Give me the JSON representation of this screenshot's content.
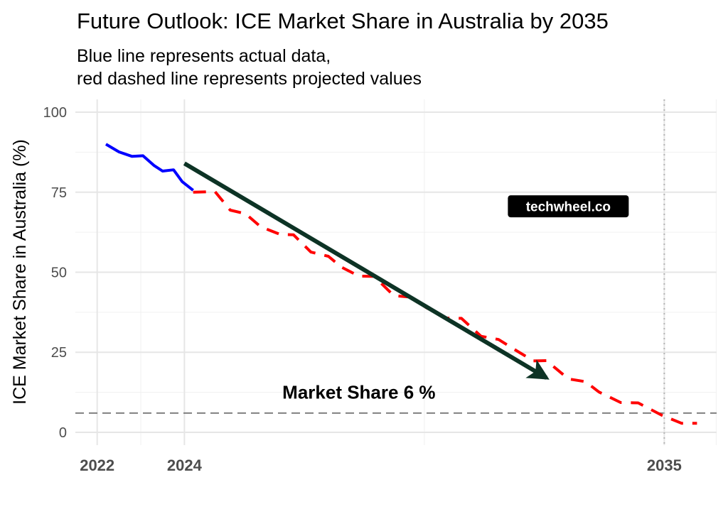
{
  "chart_data": {
    "type": "line",
    "title": "Future Outlook: ICE Market Share in Australia by 2035",
    "subtitle_lines": [
      "Blue line represents actual data,",
      "red dashed line represents projected values"
    ],
    "xlabel": "",
    "ylabel": "ICE Market Share in Australia (%)",
    "xlim": [
      2021.5,
      2036.2
    ],
    "ylim": [
      -4,
      104
    ],
    "x_ticks": [
      2022,
      2024,
      2035
    ],
    "y_ticks": [
      0,
      25,
      50,
      75,
      100
    ],
    "grid": true,
    "series": [
      {
        "name": "actual",
        "style": "solid",
        "color": "#0000ff",
        "points": [
          [
            2022.2,
            90.0
          ],
          [
            2022.5,
            87.6
          ],
          [
            2022.8,
            86.2
          ],
          [
            2023.05,
            86.4
          ],
          [
            2023.3,
            83.4
          ],
          [
            2023.5,
            81.6
          ],
          [
            2023.75,
            82.0
          ],
          [
            2023.95,
            78.3
          ],
          [
            2024.2,
            75.6
          ]
        ]
      },
      {
        "name": "projected",
        "style": "dashed",
        "color": "#ff0000",
        "points": [
          [
            2024.2,
            75.0
          ],
          [
            2024.7,
            75.2
          ],
          [
            2025.05,
            69.4
          ],
          [
            2025.4,
            68.3
          ],
          [
            2025.75,
            64.2
          ],
          [
            2026.2,
            61.8
          ],
          [
            2026.5,
            61.7
          ],
          [
            2026.9,
            56.3
          ],
          [
            2027.3,
            55.0
          ],
          [
            2027.6,
            51.6
          ],
          [
            2028.0,
            48.8
          ],
          [
            2028.35,
            48.7
          ],
          [
            2028.8,
            42.7
          ],
          [
            2029.2,
            42.2
          ],
          [
            2029.55,
            38.9
          ],
          [
            2030.0,
            35.7
          ],
          [
            2030.35,
            35.6
          ],
          [
            2030.8,
            30.0
          ],
          [
            2031.2,
            29.0
          ],
          [
            2031.6,
            25.6
          ],
          [
            2032.0,
            22.3
          ],
          [
            2032.3,
            22.4
          ],
          [
            2032.8,
            16.7
          ],
          [
            2033.2,
            15.8
          ],
          [
            2033.5,
            12.6
          ],
          [
            2034.0,
            9.3
          ],
          [
            2034.4,
            9.2
          ],
          [
            2034.95,
            5.3
          ],
          [
            2035.4,
            2.8
          ],
          [
            2035.75,
            2.8
          ]
        ]
      }
    ],
    "reference_lines": [
      {
        "orientation": "horizontal",
        "value": 6,
        "style": "dashed",
        "color": "#808080"
      },
      {
        "orientation": "vertical",
        "value": 2035,
        "style": "dotted",
        "color": "#b3b3b3"
      }
    ],
    "trend_arrow": {
      "from": [
        2024.0,
        84.0
      ],
      "to": [
        2032.3,
        17.0
      ],
      "color": "#0d3325"
    },
    "annotations": [
      {
        "text": "Market Share 6 %",
        "x": 2028.0,
        "y": 12.5
      }
    ],
    "watermark": {
      "text": "techwheel.co",
      "x": 2032.8,
      "y": 70.6
    }
  }
}
